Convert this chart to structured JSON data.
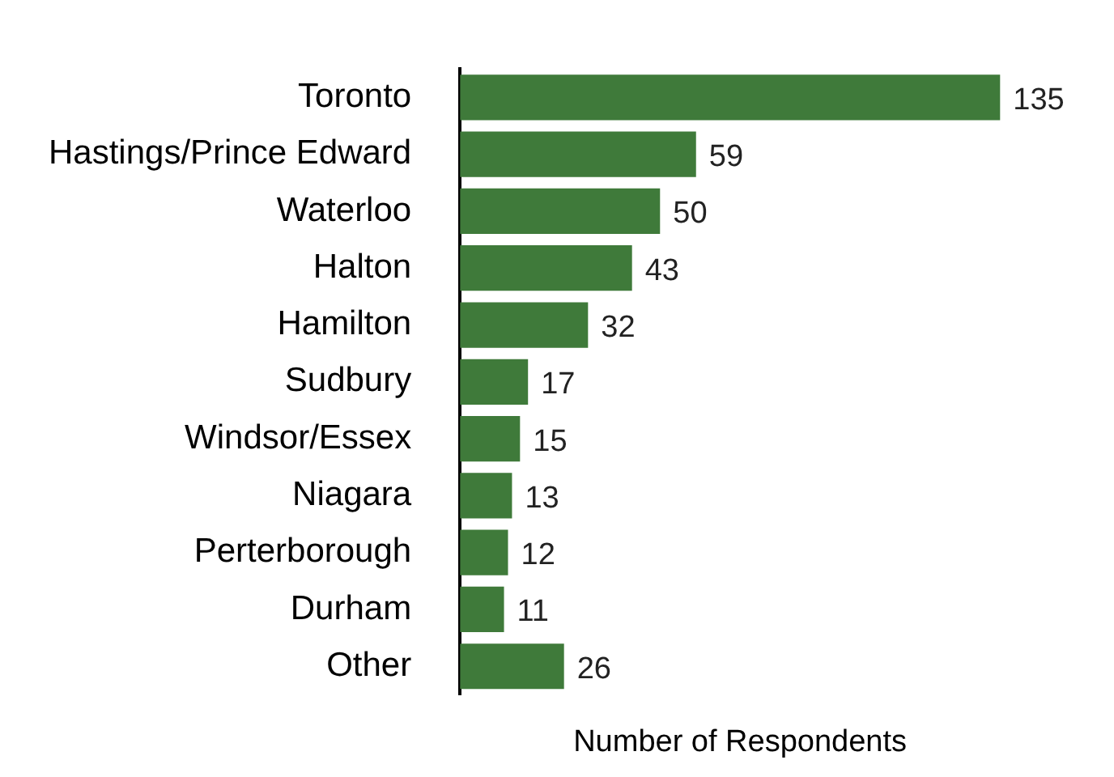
{
  "chart_data": {
    "type": "bar",
    "orientation": "horizontal",
    "categories": [
      "Toronto",
      "Hastings/Prince Edward",
      "Waterloo",
      "Halton",
      "Hamilton",
      "Sudbury",
      "Windsor/Essex",
      "Niagara",
      "Perterborough",
      "Durham",
      "Other"
    ],
    "values": [
      135,
      59,
      50,
      43,
      32,
      17,
      15,
      13,
      12,
      11,
      26
    ],
    "color": "#3f7a3a",
    "xlabel": "Number of Respondents",
    "data_labels": true,
    "grid": false,
    "legend": false
  }
}
